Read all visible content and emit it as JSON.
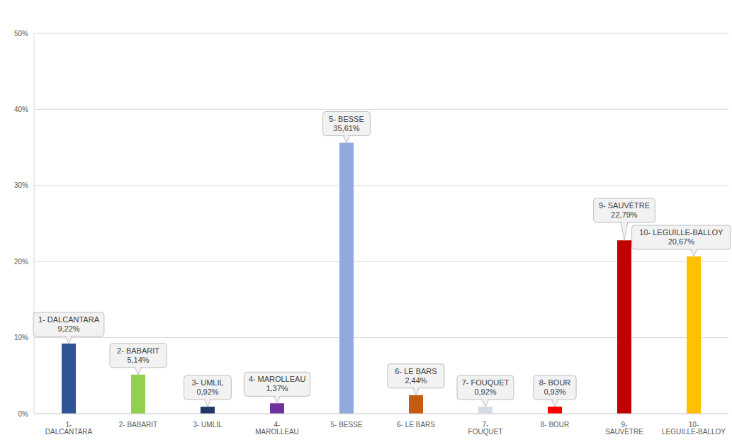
{
  "chart_data": {
    "type": "bar",
    "categories": [
      "1- DALCANTARA",
      "2- BABARIT",
      "3- UMLIL",
      "4- MAROLLEAU",
      "5- BESSE",
      "6- LE BARS",
      "7- FOUQUET",
      "8- BOUR",
      "9- SAUVÈTRE",
      "10- LEGUILLE-BALLOY"
    ],
    "values": [
      9.22,
      5.14,
      0.92,
      1.37,
      35.61,
      2.44,
      0.92,
      0.93,
      22.79,
      20.67
    ],
    "value_labels": [
      "9,22%",
      "5,14%",
      "0,92%",
      "1,37%",
      "35,61%",
      "2,44%",
      "0,92%",
      "0,93%",
      "22,79%",
      "20,67%"
    ],
    "colors": [
      "#2f5597",
      "#92d050",
      "#1f3864",
      "#7030a0",
      "#8faadc",
      "#c55a11",
      "#d6dce5",
      "#ff0000",
      "#c00000",
      "#ffc000"
    ],
    "ylim": [
      0,
      50
    ],
    "yticks": [
      {
        "value": 0,
        "label": "0%"
      },
      {
        "value": 10,
        "label": "10%"
      },
      {
        "value": 20,
        "label": "20%"
      },
      {
        "value": 30,
        "label": "30%"
      },
      {
        "value": 40,
        "label": "40%"
      },
      {
        "value": 50,
        "label": "50%"
      }
    ],
    "grid": true,
    "data_labels": true
  }
}
